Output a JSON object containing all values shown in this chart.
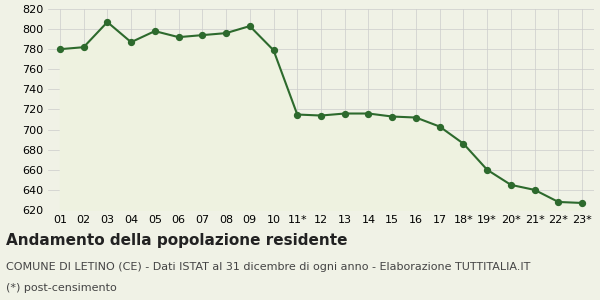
{
  "labels": [
    "01",
    "02",
    "03",
    "04",
    "05",
    "06",
    "07",
    "08",
    "09",
    "10",
    "11*",
    "12",
    "13",
    "14",
    "15",
    "16",
    "17",
    "18*",
    "19*",
    "20*",
    "21*",
    "22*",
    "23*"
  ],
  "values": [
    780,
    782,
    807,
    787,
    798,
    792,
    794,
    796,
    803,
    779,
    715,
    714,
    716,
    716,
    713,
    712,
    703,
    686,
    660,
    645,
    640,
    628,
    627
  ],
  "line_color": "#2d6a2d",
  "fill_color": "#eef2e0",
  "marker_color": "#2d6a2d",
  "bg_color": "#f0f2e6",
  "grid_color": "#cccccc",
  "ylim_min": 620,
  "ylim_max": 820,
  "yticks": [
    620,
    640,
    660,
    680,
    700,
    720,
    740,
    760,
    780,
    800,
    820
  ],
  "title": "Andamento della popolazione residente",
  "subtitle": "COMUNE DI LETINO (CE) - Dati ISTAT al 31 dicembre di ogni anno - Elaborazione TUTTITALIA.IT",
  "footnote": "(*) post-censimento",
  "title_fontsize": 11,
  "subtitle_fontsize": 8,
  "footnote_fontsize": 8,
  "tick_fontsize": 8
}
